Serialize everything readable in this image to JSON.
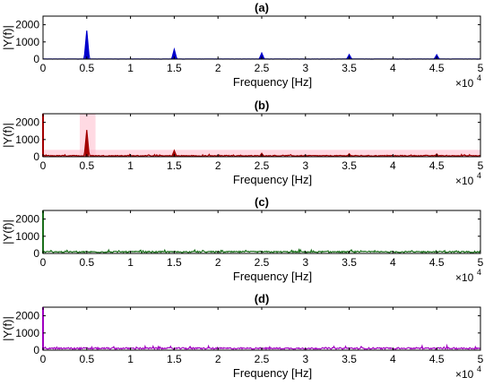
{
  "chart_data": [
    {
      "type": "line",
      "title": "(a)",
      "color": "#0000cc",
      "xlabel": "Frequency [Hz]",
      "ylabel": "|Y(f)|",
      "x_scale_label": "×10",
      "x_scale_exp": "4",
      "xlim": [
        0,
        5
      ],
      "ylim": [
        0,
        2500
      ],
      "xticks": [
        "0",
        "0.5",
        "1",
        "1.5",
        "2",
        "2.5",
        "3",
        "3.5",
        "4",
        "4.5",
        "5"
      ],
      "yticks": [
        "0",
        "1000",
        "2000"
      ],
      "noise_level": 5,
      "peaks": [
        {
          "x": 0.5,
          "y": 1650
        },
        {
          "x": 1.5,
          "y": 560
        },
        {
          "x": 2.5,
          "y": 350
        },
        {
          "x": 3.5,
          "y": 260
        },
        {
          "x": 4.5,
          "y": 250
        }
      ]
    },
    {
      "type": "line",
      "title": "(b)",
      "color": "#a30000",
      "band_color": "#ffb6c8",
      "xlabel": "Frequency [Hz]",
      "ylabel": "|Y(f)|",
      "x_scale_label": "×10",
      "x_scale_exp": "4",
      "xlim": [
        0,
        5
      ],
      "ylim": [
        0,
        2500
      ],
      "xticks": [
        "0",
        "0.5",
        "1",
        "1.5",
        "2",
        "2.5",
        "3",
        "3.5",
        "4",
        "4.5",
        "5"
      ],
      "yticks": [
        "0",
        "1000",
        "2000"
      ],
      "noise_level": 80,
      "peaks": [
        {
          "x": 0.5,
          "y": 1550
        },
        {
          "x": 1.5,
          "y": 360
        },
        {
          "x": 2.5,
          "y": 200
        },
        {
          "x": 3.5,
          "y": 170
        },
        {
          "x": 4.5,
          "y": 160
        }
      ]
    },
    {
      "type": "line",
      "title": "(c)",
      "color": "#1a6e1a",
      "xlabel": "Frequency [Hz]",
      "ylabel": "|Y(f)|",
      "x_scale_label": "×10",
      "x_scale_exp": "4",
      "xlim": [
        0,
        5
      ],
      "ylim": [
        0,
        2500
      ],
      "xticks": [
        "0",
        "0.5",
        "1",
        "1.5",
        "2",
        "2.5",
        "3",
        "3.5",
        "4",
        "4.5",
        "5"
      ],
      "yticks": [
        "0",
        "1000",
        "2000"
      ],
      "noise_level": 130,
      "peaks": []
    },
    {
      "type": "line",
      "title": "(d)",
      "color": "#a000c0",
      "xlabel": "Frequency [Hz]",
      "ylabel": "|Y(f)|",
      "x_scale_label": "×10",
      "x_scale_exp": "4",
      "xlim": [
        0,
        5
      ],
      "ylim": [
        0,
        2500
      ],
      "xticks": [
        "0",
        "0.5",
        "1",
        "1.5",
        "2",
        "2.5",
        "3",
        "3.5",
        "4",
        "4.5",
        "5"
      ],
      "yticks": [
        "0",
        "1000",
        "2000"
      ],
      "noise_level": 150,
      "peaks": []
    }
  ]
}
